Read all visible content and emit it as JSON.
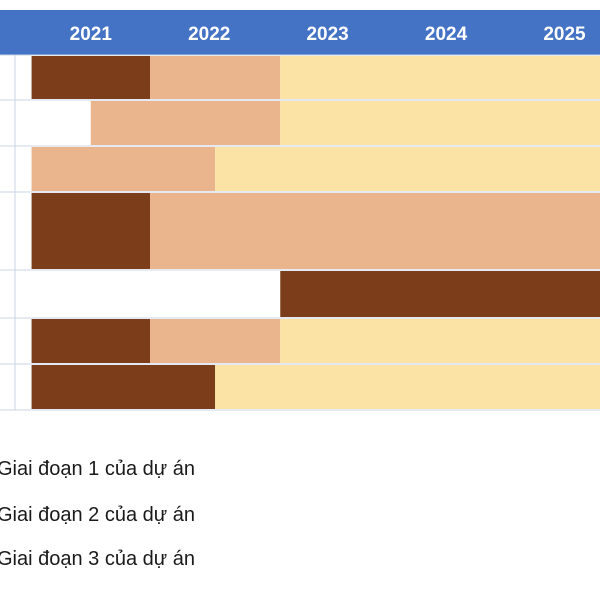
{
  "chart_data": {
    "type": "bar",
    "subtype": "gantt",
    "title": "",
    "years": [
      "2021",
      "2022",
      "2023",
      "2024",
      "2025"
    ],
    "x_unit": "year",
    "xlim": [
      2020.86,
      2025.8
    ],
    "phase_colors": {
      "phase1": "#7b3d1a",
      "phase2": "#eab48d",
      "phase3": "#fbe3a5"
    },
    "header_color": "#4472c4",
    "rows": [
      {
        "segments": [
          {
            "phase": "phase1",
            "start": 2021.0,
            "end": 2022.0
          },
          {
            "phase": "phase2",
            "start": 2022.0,
            "end": 2023.1
          },
          {
            "phase": "phase3",
            "start": 2023.1,
            "end": 2025.8
          }
        ]
      },
      {
        "segments": [
          {
            "phase": "phase2",
            "start": 2021.5,
            "end": 2023.1
          },
          {
            "phase": "phase3",
            "start": 2023.1,
            "end": 2025.8
          }
        ]
      },
      {
        "segments": [
          {
            "phase": "phase2",
            "start": 2021.0,
            "end": 2022.55
          },
          {
            "phase": "phase3",
            "start": 2022.55,
            "end": 2025.8
          }
        ]
      },
      {
        "segments": [
          {
            "phase": "phase1",
            "start": 2021.0,
            "end": 2022.0
          },
          {
            "phase": "phase2",
            "start": 2022.0,
            "end": 2025.8
          }
        ]
      },
      {
        "segments": [
          {
            "phase": "phase1",
            "start": 2023.1,
            "end": 2025.8
          }
        ]
      },
      {
        "segments": [
          {
            "phase": "phase1",
            "start": 2021.0,
            "end": 2022.0
          },
          {
            "phase": "phase2",
            "start": 2022.0,
            "end": 2023.1
          },
          {
            "phase": "phase3",
            "start": 2023.1,
            "end": 2025.8
          }
        ]
      },
      {
        "segments": [
          {
            "phase": "phase1",
            "start": 2021.0,
            "end": 2022.55
          },
          {
            "phase": "phase3",
            "start": 2022.55,
            "end": 2025.8
          }
        ]
      }
    ],
    "legend": [
      {
        "phase": "phase1",
        "label": "Giai đoạn 1 của dự án"
      },
      {
        "phase": "phase2",
        "label": "Giai đoạn 2 của dự án"
      },
      {
        "phase": "phase3",
        "label": "Giai đoạn 3 của dự án"
      }
    ]
  }
}
